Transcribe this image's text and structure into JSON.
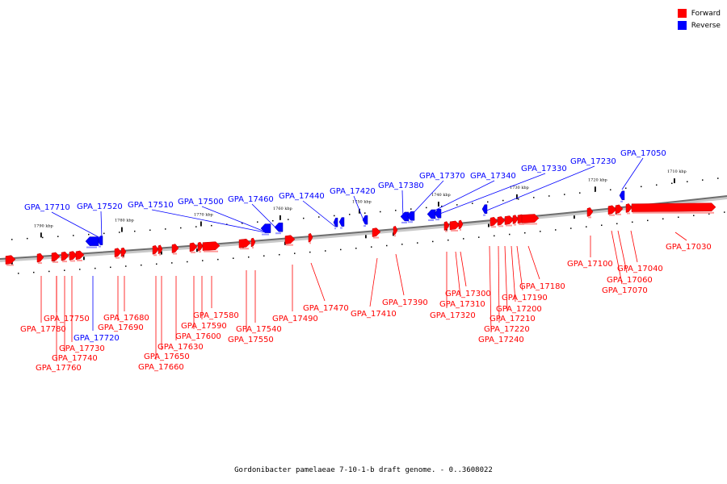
{
  "legend": {
    "forward_label": "Forward",
    "forward_color": "#ff0000",
    "reverse_label": "Reverse",
    "reverse_color": "#0000ff"
  },
  "caption": "Gordonibacter pamelaeae 7-10-1-b draft genome. - 0..3608022",
  "scale_labels": [
    "1790 kbp",
    "1780 kbp",
    "1770 kbp",
    "1760 kbp",
    "1750 kbp",
    "1740 kbp",
    "1730 kbp",
    "1720 kbp",
    "1710 kbp"
  ],
  "genes": [
    {
      "name": "GPA_17710",
      "strand": "reverse"
    },
    {
      "name": "GPA_17520",
      "strand": "reverse"
    },
    {
      "name": "GPA_17510",
      "strand": "reverse"
    },
    {
      "name": "GPA_17500",
      "strand": "reverse"
    },
    {
      "name": "GPA_17460",
      "strand": "reverse"
    },
    {
      "name": "GPA_17440",
      "strand": "reverse"
    },
    {
      "name": "GPA_17420",
      "strand": "reverse"
    },
    {
      "name": "GPA_17380",
      "strand": "reverse"
    },
    {
      "name": "GPA_17370",
      "strand": "reverse"
    },
    {
      "name": "GPA_17340",
      "strand": "reverse"
    },
    {
      "name": "GPA_17330",
      "strand": "reverse"
    },
    {
      "name": "GPA_17230",
      "strand": "reverse"
    },
    {
      "name": "GPA_17050",
      "strand": "reverse"
    },
    {
      "name": "GPA_17720",
      "strand": "reverse"
    },
    {
      "name": "GPA_17780",
      "strand": "forward"
    },
    {
      "name": "GPA_17750",
      "strand": "forward"
    },
    {
      "name": "GPA_17730",
      "strand": "forward"
    },
    {
      "name": "GPA_17740",
      "strand": "forward"
    },
    {
      "name": "GPA_17760",
      "strand": "forward"
    },
    {
      "name": "GPA_17680",
      "strand": "forward"
    },
    {
      "name": "GPA_17690",
      "strand": "forward"
    },
    {
      "name": "GPA_17630",
      "strand": "forward"
    },
    {
      "name": "GPA_17650",
      "strand": "forward"
    },
    {
      "name": "GPA_17660",
      "strand": "forward"
    },
    {
      "name": "GPA_17600",
      "strand": "forward"
    },
    {
      "name": "GPA_17590",
      "strand": "forward"
    },
    {
      "name": "GPA_17580",
      "strand": "forward"
    },
    {
      "name": "GPA_17540",
      "strand": "forward"
    },
    {
      "name": "GPA_17550",
      "strand": "forward"
    },
    {
      "name": "GPA_17490",
      "strand": "forward"
    },
    {
      "name": "GPA_17470",
      "strand": "forward"
    },
    {
      "name": "GPA_17410",
      "strand": "forward"
    },
    {
      "name": "GPA_17390",
      "strand": "forward"
    },
    {
      "name": "GPA_17300",
      "strand": "forward"
    },
    {
      "name": "GPA_17310",
      "strand": "forward"
    },
    {
      "name": "GPA_17320",
      "strand": "forward"
    },
    {
      "name": "GPA_17180",
      "strand": "forward"
    },
    {
      "name": "GPA_17190",
      "strand": "forward"
    },
    {
      "name": "GPA_17200",
      "strand": "forward"
    },
    {
      "name": "GPA_17210",
      "strand": "forward"
    },
    {
      "name": "GPA_17220",
      "strand": "forward"
    },
    {
      "name": "GPA_17240",
      "strand": "forward"
    },
    {
      "name": "GPA_17100",
      "strand": "forward"
    },
    {
      "name": "GPA_17040",
      "strand": "forward"
    },
    {
      "name": "GPA_17060",
      "strand": "forward"
    },
    {
      "name": "GPA_17070",
      "strand": "forward"
    },
    {
      "name": "GPA_17030",
      "strand": "forward"
    }
  ]
}
